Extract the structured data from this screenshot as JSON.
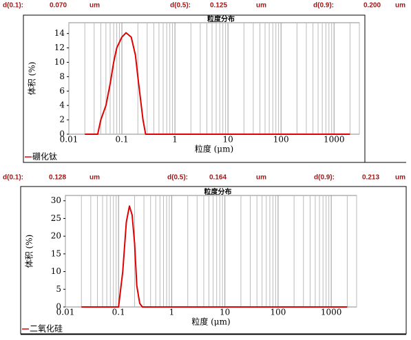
{
  "stats": [
    [
      {
        "label": "d(0.1):",
        "value": "0.070",
        "unit": "um"
      },
      {
        "label": "d(0.5):",
        "value": "0.125",
        "unit": "um"
      },
      {
        "label": "d(0.9):",
        "value": "0.200",
        "unit": "um"
      }
    ],
    [
      {
        "label": "d(0.1):",
        "value": "0.128",
        "unit": "um"
      },
      {
        "label": "d(0.5):",
        "value": "0.164",
        "unit": "um"
      },
      {
        "label": "d(0.9):",
        "value": "0.213",
        "unit": "um"
      }
    ]
  ],
  "chart_data": [
    {
      "type": "line",
      "title": "粒度分布",
      "x_label": "粒度 (μm)",
      "y_label": "体积 (%)",
      "log_x": true,
      "grid": "x",
      "xlim": [
        0.01,
        3000
      ],
      "xticks": [
        0.01,
        0.1,
        1,
        10,
        100,
        1000
      ],
      "ylim": [
        0,
        15.5
      ],
      "yticks": [
        0,
        2,
        4,
        6,
        8,
        10,
        12,
        14
      ],
      "x": [
        0.02,
        0.035,
        0.04,
        0.05,
        0.06,
        0.07,
        0.08,
        0.1,
        0.12,
        0.15,
        0.18,
        0.2,
        0.25,
        0.28,
        1,
        10,
        100,
        2000
      ],
      "series": [
        {
          "name": "硼化钛",
          "color": "#e00000",
          "values": [
            0,
            0,
            2,
            4,
            7,
            10,
            12,
            13.5,
            14.1,
            13.5,
            11,
            8,
            2,
            0,
            0,
            0,
            0,
            0
          ]
        }
      ]
    },
    {
      "type": "line",
      "title": "粒度分布",
      "x_label": "粒度 (μm)",
      "y_label": "体积 (%)",
      "log_x": true,
      "grid": "x",
      "xlim": [
        0.01,
        3000
      ],
      "xticks": [
        0.01,
        0.1,
        1,
        10,
        100,
        1000
      ],
      "ylim": [
        0,
        31.5
      ],
      "yticks": [
        0,
        5,
        10,
        15,
        20,
        25,
        30
      ],
      "x": [
        0.02,
        0.1,
        0.12,
        0.14,
        0.16,
        0.18,
        0.2,
        0.22,
        0.25,
        0.28,
        1,
        10,
        100,
        2000
      ],
      "series": [
        {
          "name": "二氧化硅",
          "color": "#e00000",
          "values": [
            0,
            0,
            10,
            24,
            28.5,
            26,
            18,
            6,
            1,
            0,
            0,
            0,
            0,
            0
          ]
        }
      ]
    }
  ]
}
